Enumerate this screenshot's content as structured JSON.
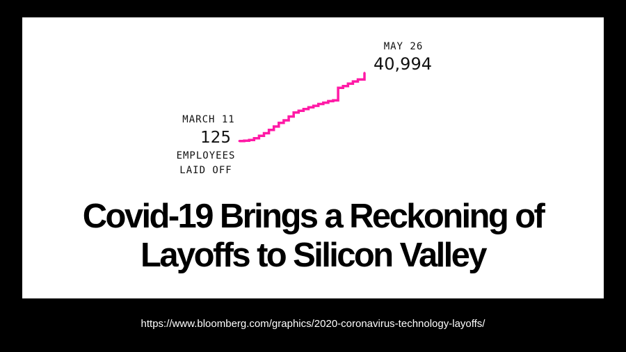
{
  "chart_data": {
    "type": "line",
    "series_color": "#ff1aa6",
    "start": {
      "date_label": "MARCH 11",
      "value_label": "125",
      "note_lines": [
        "EMPLOYEES",
        "LAID OFF"
      ]
    },
    "end": {
      "date_label": "MAY 26",
      "value_label": "40,994"
    },
    "x": [
      "2020-03-11",
      "2020-03-14",
      "2020-03-17",
      "2020-03-20",
      "2020-03-23",
      "2020-03-26",
      "2020-03-29",
      "2020-04-01",
      "2020-04-04",
      "2020-04-07",
      "2020-04-10",
      "2020-04-13",
      "2020-04-16",
      "2020-04-19",
      "2020-04-22",
      "2020-04-25",
      "2020-04-28",
      "2020-05-01",
      "2020-05-04",
      "2020-05-07",
      "2020-05-10",
      "2020-05-13",
      "2020-05-16",
      "2020-05-19",
      "2020-05-22",
      "2020-05-26"
    ],
    "values": [
      125,
      300,
      700,
      1800,
      3200,
      4800,
      6800,
      8800,
      11000,
      12500,
      14800,
      17200,
      18200,
      19300,
      20300,
      21200,
      22300,
      23100,
      24000,
      24500,
      32000,
      33000,
      34500,
      35800,
      37000,
      40994
    ],
    "xlim": [
      "2020-03-11",
      "2020-05-26"
    ],
    "ylim": [
      0,
      45000
    ],
    "grid": false,
    "title": "",
    "xlabel": "",
    "ylabel": ""
  },
  "headline": {
    "line1": "Covid-19 Brings a Reckoning of",
    "line2": "Layoffs to Silicon Valley"
  },
  "source": {
    "url": "https://www.bloomberg.com/graphics/2020-coronavirus-technology-layoffs/"
  }
}
